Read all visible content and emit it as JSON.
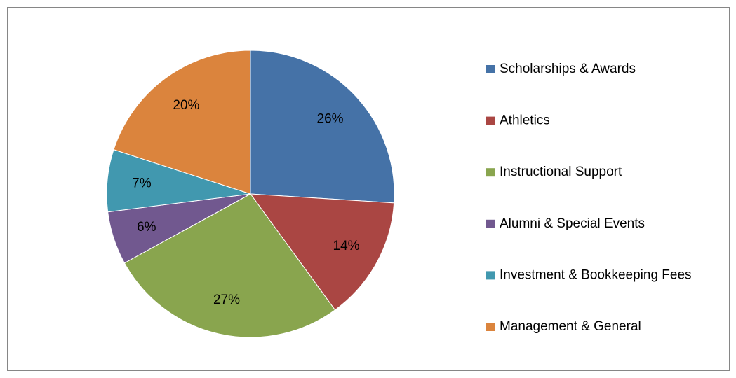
{
  "chart_data": {
    "type": "pie",
    "categories": [
      "Scholarships & Awards",
      "Athletics",
      "Instructional Support",
      "Alumni & Special Events",
      "Investment & Bookkeeping Fees",
      "Management & General"
    ],
    "values": [
      26,
      14,
      27,
      6,
      7,
      20
    ],
    "value_labels": [
      "26%",
      "14%",
      "27%",
      "6%",
      "7%",
      "20%"
    ],
    "colors": [
      "#4572a7",
      "#aa4643",
      "#89a54e",
      "#71588f",
      "#4198af",
      "#db843d"
    ],
    "legend": "right"
  }
}
